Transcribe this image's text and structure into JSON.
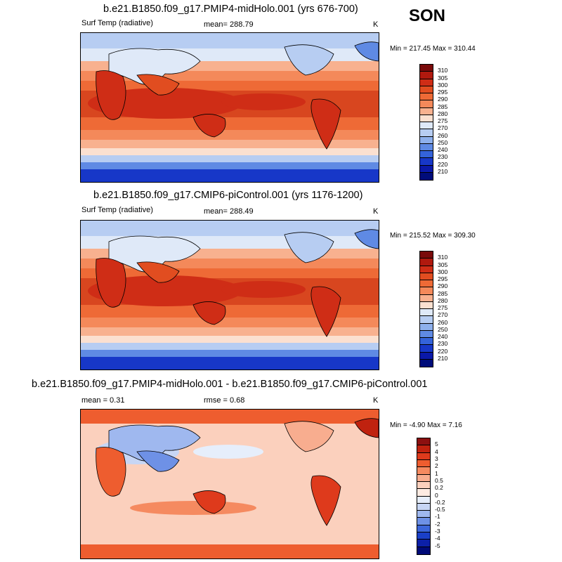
{
  "season": "SON",
  "panels": [
    {
      "title": "b.e21.B1850.f09_g17.PMIP4-midHolo.001 (yrs 676-700)",
      "left_label": "Surf Temp (radiative)",
      "mean_label": "mean= 288.79",
      "units": "K",
      "minmax": "Min = 217.45 Max = 310.44",
      "legend": {
        "labels": [
          "310",
          "305",
          "300",
          "295",
          "290",
          "285",
          "280",
          "275",
          "270",
          "260",
          "250",
          "240",
          "230",
          "220",
          "210"
        ],
        "colors": [
          "#7a0a0a",
          "#b0190e",
          "#cf2d16",
          "#e14d20",
          "#ee6a36",
          "#f4895a",
          "#f8b18f",
          "#fbe0d0",
          "#dfe9f8",
          "#b7cdf2",
          "#8eb0ec",
          "#5f8ae4",
          "#3463da",
          "#1737c8",
          "#0a18a8",
          "#000c7a"
        ]
      }
    },
    {
      "title": "b.e21.B1850.f09_g17.CMIP6-piControl.001 (yrs 1176-1200)",
      "left_label": "Surf Temp (radiative)",
      "mean_label": "mean= 288.49",
      "units": "K",
      "minmax": "Min = 215.52 Max = 309.30",
      "legend": {
        "labels": [
          "310",
          "305",
          "300",
          "295",
          "290",
          "285",
          "280",
          "275",
          "270",
          "260",
          "250",
          "240",
          "230",
          "220",
          "210"
        ],
        "colors": [
          "#7a0a0a",
          "#b0190e",
          "#cf2d16",
          "#e14d20",
          "#ee6a36",
          "#f4895a",
          "#f8b18f",
          "#fbe0d0",
          "#dfe9f8",
          "#b7cdf2",
          "#8eb0ec",
          "#5f8ae4",
          "#3463da",
          "#1737c8",
          "#0a18a8",
          "#000c7a"
        ]
      }
    },
    {
      "title": "b.e21.B1850.f09_g17.PMIP4-midHolo.001 - b.e21.B1850.f09_g17.CMIP6-piControl.001",
      "left_label": "mean =   0.31",
      "mean_label": "rmse =   0.68",
      "units": "K",
      "minmax": "Min =  -4.90 Max =   7.16",
      "legend": {
        "labels": [
          "5",
          "4",
          "3",
          "2",
          "1",
          "0.5",
          "0.2",
          "0",
          "-0.2",
          "-0.5",
          "-1",
          "-2",
          "-3",
          "-4",
          "-5"
        ],
        "colors": [
          "#8c1010",
          "#c0220f",
          "#de3a1c",
          "#ee5d2f",
          "#f58a60",
          "#f8ad8f",
          "#fbd0bd",
          "#fdebe2",
          "#e6eefb",
          "#c7d6f5",
          "#9fb8ef",
          "#6e91e6",
          "#3c66da",
          "#1a3fc8",
          "#0c20a8",
          "#000a78"
        ]
      }
    }
  ],
  "colors": {
    "warm_ocean": "#d8461f",
    "hot": "#cf2d16",
    "mild": "#f4895a",
    "cool": "#fbd0bd",
    "cold": "#8eb0ec",
    "polar": "#1737c8",
    "land_line": "#000000"
  }
}
